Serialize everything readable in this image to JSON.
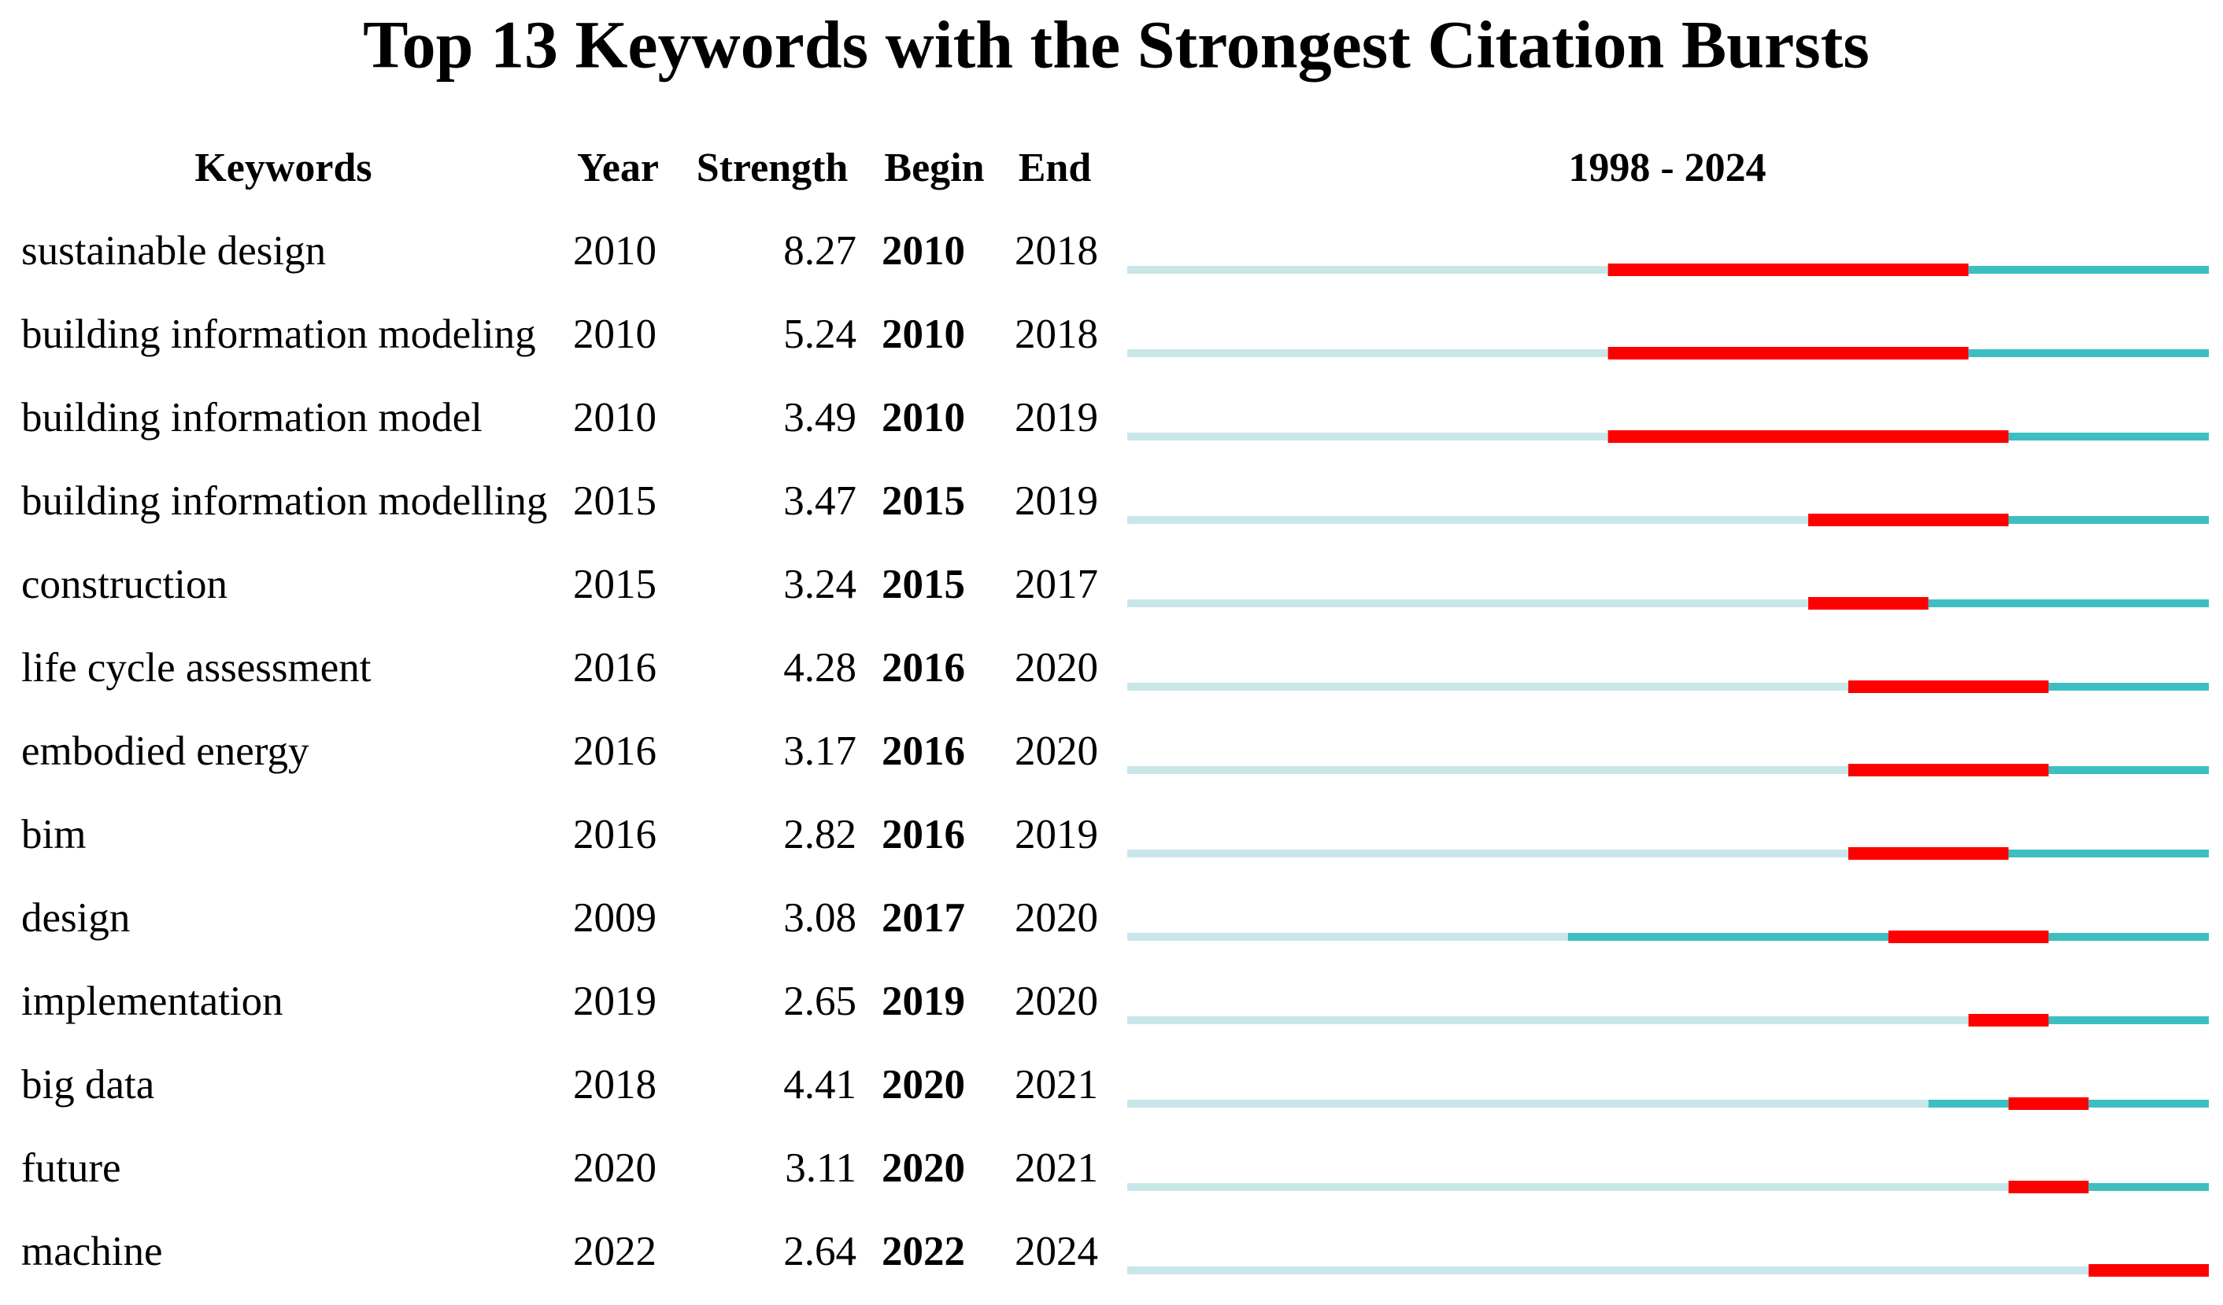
{
  "chart_data": {
    "type": "burst",
    "title": "Top 13 Keywords with the Strongest Citation Bursts",
    "columns": [
      "Keywords",
      "Year",
      "Strength",
      "Begin",
      "End"
    ],
    "range_label": "1998 - 2024",
    "xlim": [
      1998,
      2024
    ],
    "colors": {
      "absent": "#c9e7e9",
      "present": "#3dbfc1",
      "burst": "#ff0000"
    },
    "rows": [
      {
        "keyword": "sustainable design",
        "year": 2010,
        "strength": 8.27,
        "begin": 2010,
        "end": 2018
      },
      {
        "keyword": "building information modeling",
        "year": 2010,
        "strength": 5.24,
        "begin": 2010,
        "end": 2018
      },
      {
        "keyword": "building information model",
        "year": 2010,
        "strength": 3.49,
        "begin": 2010,
        "end": 2019
      },
      {
        "keyword": "building information modelling",
        "year": 2015,
        "strength": 3.47,
        "begin": 2015,
        "end": 2019
      },
      {
        "keyword": "construction",
        "year": 2015,
        "strength": 3.24,
        "begin": 2015,
        "end": 2017
      },
      {
        "keyword": "life cycle assessment",
        "year": 2016,
        "strength": 4.28,
        "begin": 2016,
        "end": 2020
      },
      {
        "keyword": "embodied energy",
        "year": 2016,
        "strength": 3.17,
        "begin": 2016,
        "end": 2020
      },
      {
        "keyword": "bim",
        "year": 2016,
        "strength": 2.82,
        "begin": 2016,
        "end": 2019
      },
      {
        "keyword": "design",
        "year": 2009,
        "strength": 3.08,
        "begin": 2017,
        "end": 2020
      },
      {
        "keyword": "implementation",
        "year": 2019,
        "strength": 2.65,
        "begin": 2019,
        "end": 2020
      },
      {
        "keyword": "big data",
        "year": 2018,
        "strength": 4.41,
        "begin": 2020,
        "end": 2021
      },
      {
        "keyword": "future",
        "year": 2020,
        "strength": 3.11,
        "begin": 2020,
        "end": 2021
      },
      {
        "keyword": "machine",
        "year": 2022,
        "strength": 2.64,
        "begin": 2022,
        "end": 2024
      }
    ]
  }
}
